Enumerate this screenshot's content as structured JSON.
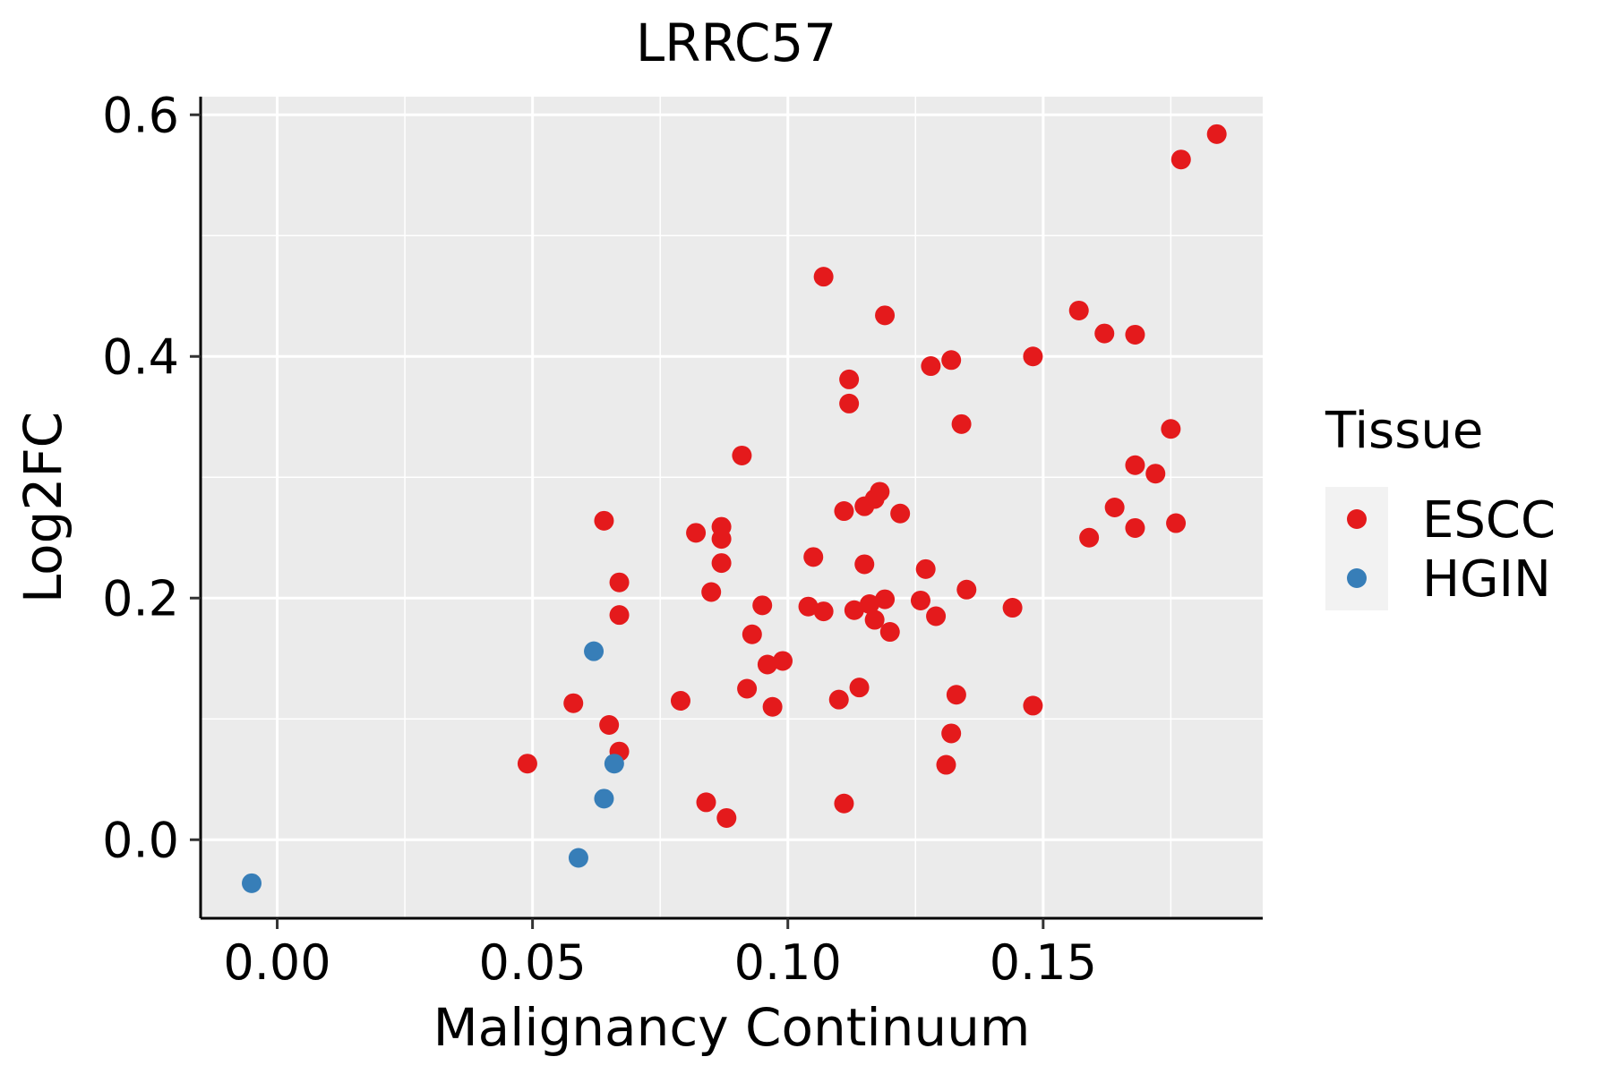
{
  "chart_data": {
    "type": "scatter",
    "title": "LRRC57",
    "xlabel": "Malignancy Continuum",
    "ylabel": "Log2FC",
    "xlim": [
      -0.015,
      0.193
    ],
    "ylim": [
      -0.065,
      0.615
    ],
    "xticks": [
      0.0,
      0.05,
      0.1,
      0.15
    ],
    "xtick_labels": [
      "0.00",
      "0.05",
      "0.10",
      "0.15"
    ],
    "yticks": [
      0.0,
      0.2,
      0.4,
      0.6
    ],
    "ytick_labels": [
      "0.0",
      "0.2",
      "0.4",
      "0.6"
    ],
    "grid": true,
    "legend": {
      "title": "Tissue",
      "position": "right",
      "entries": [
        {
          "label": "ESCC",
          "color": "#E41A1C"
        },
        {
          "label": "HGIN",
          "color": "#377EB8"
        }
      ]
    },
    "series": [
      {
        "name": "ESCC",
        "color": "#E41A1C",
        "points": [
          [
            0.049,
            0.063
          ],
          [
            0.058,
            0.113
          ],
          [
            0.064,
            0.264
          ],
          [
            0.065,
            0.095
          ],
          [
            0.067,
            0.213
          ],
          [
            0.067,
            0.186
          ],
          [
            0.067,
            0.073
          ],
          [
            0.079,
            0.115
          ],
          [
            0.082,
            0.254
          ],
          [
            0.084,
            0.031
          ],
          [
            0.085,
            0.205
          ],
          [
            0.087,
            0.259
          ],
          [
            0.087,
            0.249
          ],
          [
            0.087,
            0.229
          ],
          [
            0.088,
            0.018
          ],
          [
            0.091,
            0.318
          ],
          [
            0.092,
            0.125
          ],
          [
            0.093,
            0.17
          ],
          [
            0.095,
            0.194
          ],
          [
            0.096,
            0.145
          ],
          [
            0.097,
            0.11
          ],
          [
            0.099,
            0.148
          ],
          [
            0.104,
            0.193
          ],
          [
            0.105,
            0.234
          ],
          [
            0.107,
            0.189
          ],
          [
            0.107,
            0.466
          ],
          [
            0.11,
            0.116
          ],
          [
            0.111,
            0.272
          ],
          [
            0.111,
            0.03
          ],
          [
            0.112,
            0.381
          ],
          [
            0.112,
            0.361
          ],
          [
            0.113,
            0.19
          ],
          [
            0.114,
            0.126
          ],
          [
            0.115,
            0.276
          ],
          [
            0.115,
            0.228
          ],
          [
            0.116,
            0.195
          ],
          [
            0.117,
            0.282
          ],
          [
            0.117,
            0.182
          ],
          [
            0.118,
            0.288
          ],
          [
            0.119,
            0.199
          ],
          [
            0.119,
            0.434
          ],
          [
            0.12,
            0.172
          ],
          [
            0.122,
            0.27
          ],
          [
            0.126,
            0.198
          ],
          [
            0.127,
            0.224
          ],
          [
            0.128,
            0.392
          ],
          [
            0.129,
            0.185
          ],
          [
            0.131,
            0.062
          ],
          [
            0.132,
            0.397
          ],
          [
            0.132,
            0.088
          ],
          [
            0.133,
            0.12
          ],
          [
            0.134,
            0.344
          ],
          [
            0.135,
            0.207
          ],
          [
            0.144,
            0.192
          ],
          [
            0.148,
            0.111
          ],
          [
            0.148,
            0.4
          ],
          [
            0.157,
            0.438
          ],
          [
            0.159,
            0.25
          ],
          [
            0.162,
            0.419
          ],
          [
            0.164,
            0.275
          ],
          [
            0.168,
            0.31
          ],
          [
            0.168,
            0.258
          ],
          [
            0.168,
            0.418
          ],
          [
            0.172,
            0.303
          ],
          [
            0.175,
            0.34
          ],
          [
            0.176,
            0.262
          ],
          [
            0.177,
            0.563
          ],
          [
            0.184,
            0.584
          ]
        ]
      },
      {
        "name": "HGIN",
        "color": "#377EB8",
        "points": [
          [
            -0.005,
            -0.036
          ],
          [
            0.059,
            -0.015
          ],
          [
            0.062,
            0.156
          ],
          [
            0.064,
            0.034
          ],
          [
            0.066,
            0.063
          ]
        ]
      }
    ]
  }
}
